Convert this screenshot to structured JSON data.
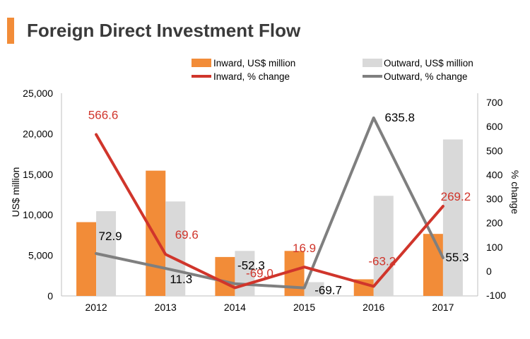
{
  "title": "Foreign Direct Investment Flow",
  "colors": {
    "accent": "#f28c38",
    "inward_bar": "#f28c38",
    "outward_bar": "#d9d9d9",
    "inward_line": "#d0352b",
    "outward_line": "#7f7f7f",
    "axis": "#bfbfbf",
    "text": "#000000"
  },
  "chart_data": {
    "type": "bar",
    "title": "Foreign Direct Investment Flow",
    "categories": [
      "2012",
      "2013",
      "2014",
      "2015",
      "2016",
      "2017"
    ],
    "xlabel": "",
    "ylabel": "US$ million",
    "ylim": [
      0,
      25000
    ],
    "y_ticks": [
      "0",
      "5,000",
      "10,000",
      "15,000",
      "20,000",
      "25,000"
    ],
    "y_tick_values": [
      0,
      5000,
      10000,
      15000,
      20000,
      25000
    ],
    "y2label": "% change",
    "y2lim": [
      -100,
      700
    ],
    "y2_ticks": [
      "-100",
      "0",
      "100",
      "200",
      "300",
      "400",
      "500",
      "600",
      "700"
    ],
    "y2_tick_values": [
      -100,
      0,
      100,
      200,
      300,
      400,
      500,
      600,
      700
    ],
    "grid": false,
    "legend_position": "top-right",
    "series": [
      {
        "name": "Inward, US$ million",
        "kind": "bar",
        "axis": "left",
        "values": [
          9100,
          15450,
          4800,
          5550,
          2050,
          7650
        ]
      },
      {
        "name": "Outward, US$ million",
        "kind": "bar",
        "axis": "left",
        "values": [
          10450,
          11650,
          5550,
          1700,
          12350,
          19300
        ]
      },
      {
        "name": "Inward, % change",
        "kind": "line",
        "axis": "right",
        "values": [
          566.6,
          69.6,
          -69.0,
          16.9,
          -63.2,
          269.2
        ],
        "labels": [
          "566.6",
          "69.6",
          "-69.0",
          "16.9",
          "-63.2",
          "269.2"
        ]
      },
      {
        "name": "Outward, % change",
        "kind": "line",
        "axis": "right",
        "values": [
          72.9,
          11.3,
          -52.3,
          -69.7,
          635.8,
          55.3
        ],
        "labels": [
          "72.9",
          "11.3",
          "-52.3",
          "-69.7",
          "635.8",
          "55.3"
        ]
      }
    ]
  }
}
